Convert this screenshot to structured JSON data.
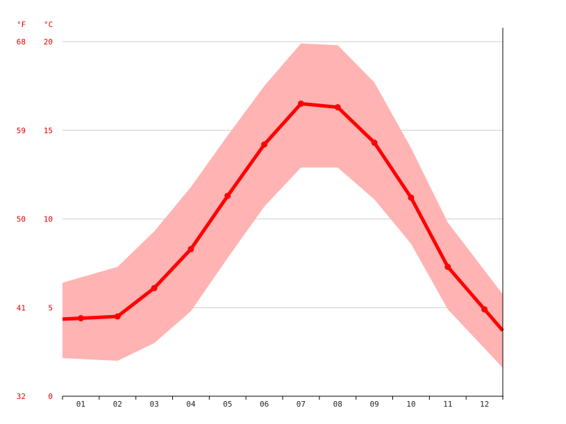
{
  "chart_data": {
    "type": "line",
    "title": "",
    "xlabel": "",
    "ylabel": "",
    "y_unit_left": "°F",
    "y_unit_right": "°C",
    "categories": [
      "01",
      "02",
      "03",
      "04",
      "05",
      "06",
      "07",
      "08",
      "09",
      "10",
      "11",
      "12"
    ],
    "ylim": [
      0,
      20
    ],
    "y_ticks_c": [
      "20",
      "15",
      "10",
      "5",
      "0"
    ],
    "y_ticks_f": [
      "68",
      "59",
      "50",
      "41",
      "32"
    ],
    "y_tick_values": [
      20,
      15,
      10,
      5,
      0
    ],
    "grid": true,
    "series": [
      {
        "name": "",
        "kind": "band-max",
        "values": [
          6.7,
          7.3,
          9.3,
          11.8,
          14.7,
          17.5,
          19.9,
          19.8,
          17.7,
          14.0,
          9.8,
          7.1
        ]
      },
      {
        "name": "",
        "kind": "band-min",
        "values": [
          2.1,
          2.0,
          3.0,
          4.8,
          7.8,
          10.7,
          12.9,
          12.9,
          11.1,
          8.6,
          4.9,
          2.7
        ]
      },
      {
        "name": "",
        "kind": "mean",
        "values": [
          4.4,
          4.5,
          6.1,
          8.3,
          11.3,
          14.2,
          16.5,
          16.3,
          14.3,
          11.2,
          7.3,
          4.9
        ]
      }
    ],
    "colors": {
      "line": "#ff0000",
      "band": "#ffb3b3",
      "grid": "#cccccc",
      "axis_label": "#e60000",
      "x_label": "#222222"
    }
  }
}
